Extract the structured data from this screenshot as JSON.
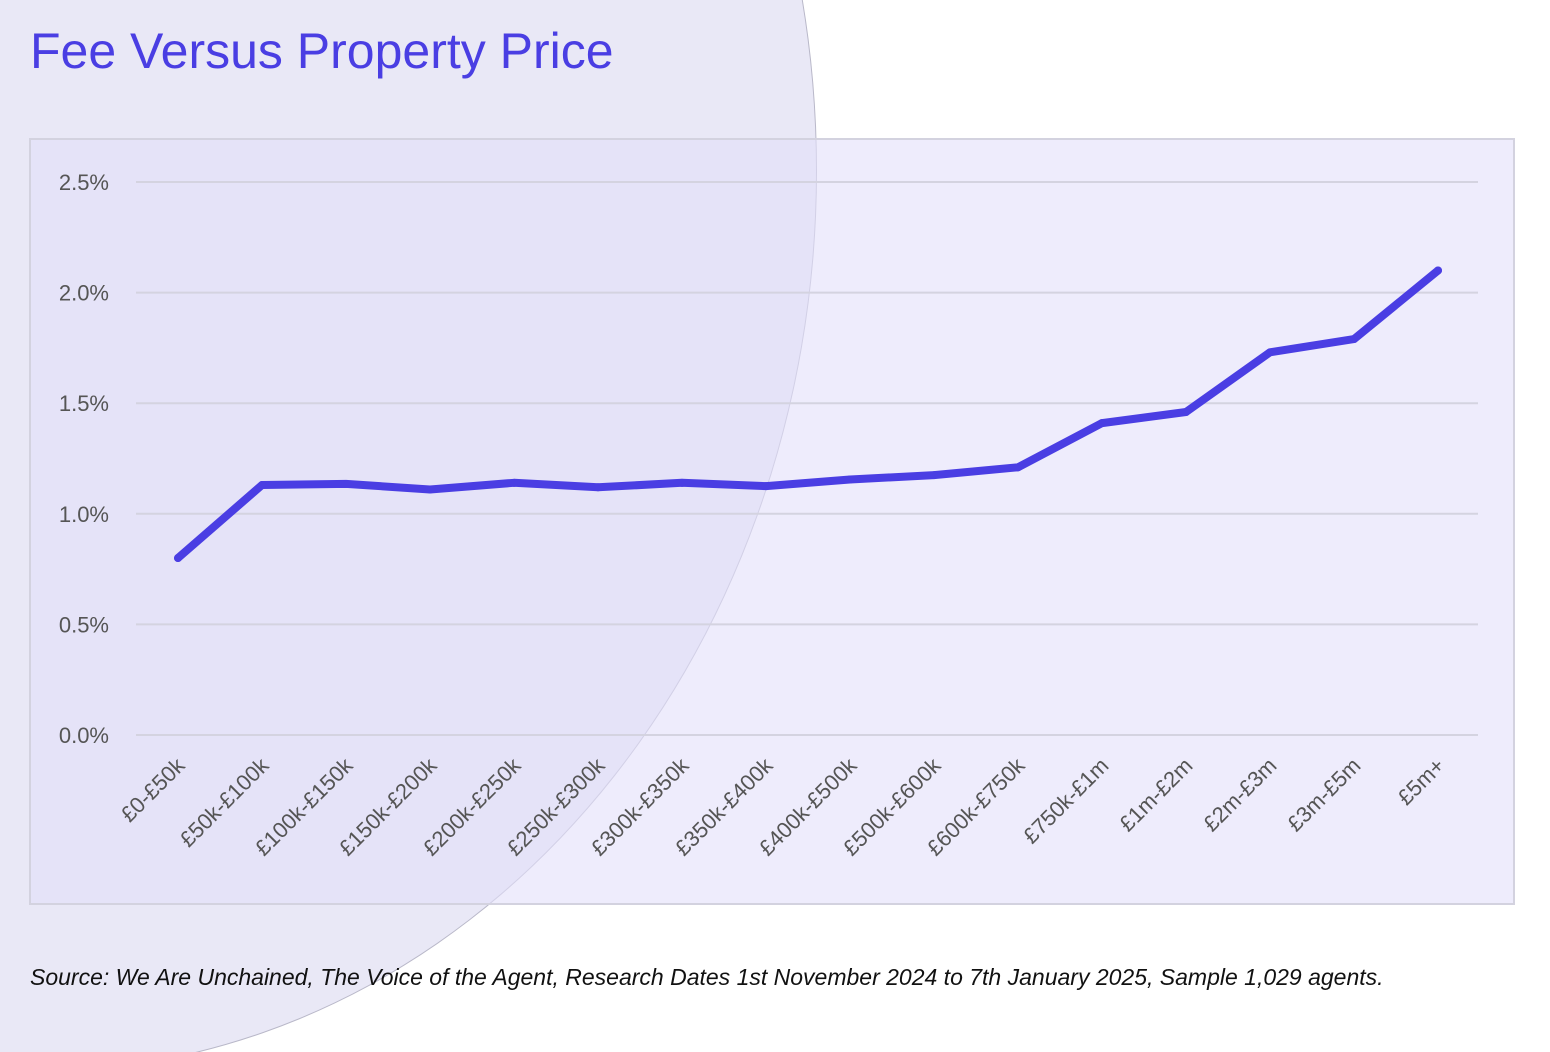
{
  "title": "Fee Versus Property Price",
  "source": "Source: We Are Unchained, The Voice of the Agent, Research Dates 1st November 2024 to 7th January 2025, Sample 1,029 agents.",
  "colors": {
    "title": "#4a3ee3",
    "line": "#4a3ee3",
    "plot_background": "#e9e7fb",
    "gridline": "#d4d3e0",
    "tick_text": "#555555"
  },
  "chart_data": {
    "type": "line",
    "title": "Fee Versus Property Price",
    "xlabel": "",
    "ylabel": "",
    "categories": [
      "£0-£50k",
      "£50k-£100k",
      "£100k-£150k",
      "£150k-£200k",
      "£200k-£250k",
      "£250k-£300k",
      "£300k-£350k",
      "£350k-£400k",
      "£400k-£500k",
      "£500k-£600k",
      "£600k-£750k",
      "£750k-£1m",
      "£1m-£2m",
      "£2m-£3m",
      "£3m-£5m",
      "£5m+"
    ],
    "series": [
      {
        "values": [
          0.8,
          1.13,
          1.135,
          1.11,
          1.14,
          1.12,
          1.14,
          1.125,
          1.155,
          1.175,
          1.21,
          1.41,
          1.46,
          1.73,
          1.79,
          2.1
        ]
      }
    ],
    "ylim": [
      0,
      2.5
    ],
    "yticks": [
      0.0,
      0.5,
      1.0,
      1.5,
      2.0,
      2.5
    ],
    "ytick_labels": [
      "0.0%",
      "0.5%",
      "1.0%",
      "1.5%",
      "2.0%",
      "2.5%"
    ],
    "grid": true,
    "legend": "none"
  }
}
